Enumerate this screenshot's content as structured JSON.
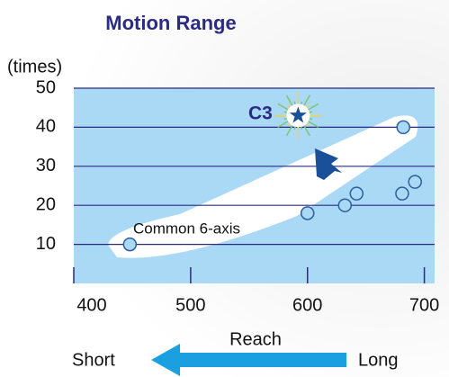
{
  "chart_data": {
    "type": "scatter",
    "title": "Motion Range",
    "y_label": "(times)",
    "x_label": "Reach",
    "x": [
      448,
      600,
      632,
      642,
      681,
      692,
      682
    ],
    "values": [
      10,
      18,
      20,
      23,
      23,
      26,
      40
    ],
    "color": "#a9d9f4",
    "xlim": [
      400,
      708
    ],
    "ylim": [
      0,
      50
    ],
    "xticks": [
      400,
      500,
      600,
      700
    ],
    "yticks": [
      10,
      20,
      30,
      40,
      50
    ],
    "grid": true,
    "group_label": "Common 6-axis",
    "highlight": {
      "label": "C3",
      "x": 592,
      "y": 43,
      "color": "#1a4f9a"
    },
    "direction": {
      "short": "Short",
      "long": "Long"
    }
  }
}
